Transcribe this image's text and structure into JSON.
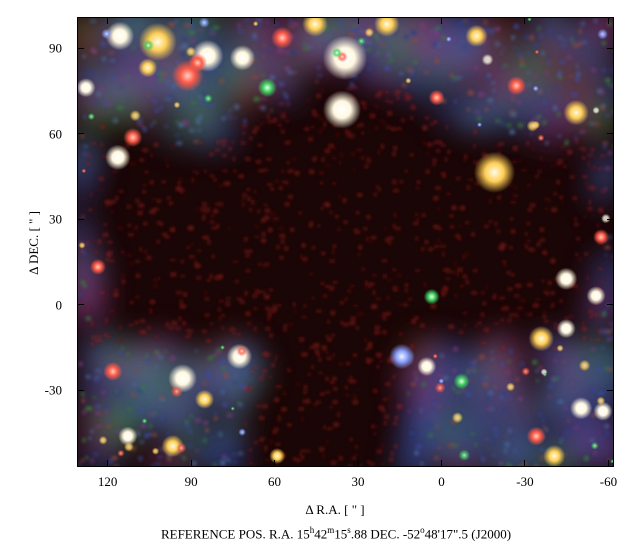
{
  "image": {
    "description_type": "false-color three-band astronomical image of a dark cloud",
    "palette": {
      "dark_cloud": "#2a0707",
      "cloud_texture": "#8a1a18",
      "field_blue": "#3b4a9a",
      "field_green": "#3a7a3a",
      "star_white": "#ffffff",
      "star_yellow": "#ffd76a",
      "star_red": "#ff6a55"
    }
  },
  "axes": {
    "xlabel": "Δ R.A. [ \" ]",
    "ylabel": "Δ DEC. [ \" ]",
    "xticks": [
      "120",
      "90",
      "60",
      "30",
      "0",
      "-30",
      "-60"
    ],
    "yticks": [
      "90",
      "60",
      "30",
      "0",
      "-30"
    ],
    "x_range": [
      131,
      -62
    ],
    "y_range": [
      -57,
      101
    ]
  },
  "caption": {
    "prefix": "REFERENCE POS.  R.A. 15",
    "ra_h": "h",
    "ra_42": "42",
    "ra_m": "m",
    "ra_15": "15",
    "ra_s": "s",
    "ra_frac": ".88  DEC.  -52",
    "dec_o": "o",
    "dec_rest": "48'17\".5  (J2000)"
  }
}
